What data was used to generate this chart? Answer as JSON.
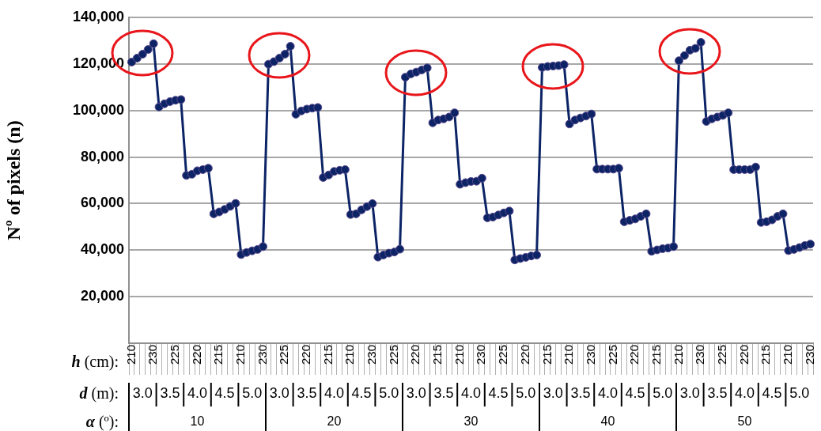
{
  "chart_data": {
    "type": "line",
    "ylabel": "Nº of pixels (n)",
    "categories": [
      "210",
      null,
      null,
      null,
      "230",
      null,
      null,
      null,
      "225",
      null,
      null,
      null,
      "220",
      null,
      null,
      null,
      "215",
      null,
      null,
      null,
      "210",
      null,
      null,
      null,
      "230",
      null,
      null,
      null,
      "225",
      null,
      null,
      null,
      "220",
      null,
      null,
      null,
      "215",
      null,
      null,
      null,
      "210",
      null,
      null,
      null,
      "230",
      null,
      null,
      null,
      "225",
      null,
      null,
      null,
      "220",
      null,
      null,
      null,
      "215",
      null,
      null,
      null,
      "210",
      null,
      null,
      null,
      "230",
      null,
      null,
      null,
      "225",
      null,
      null,
      null,
      "220",
      null,
      null,
      null,
      "215",
      null,
      null,
      null,
      "210",
      null,
      null,
      null,
      "230",
      null,
      null,
      null,
      "225",
      null,
      null,
      null,
      "220",
      null,
      null,
      null,
      "215",
      null,
      null,
      null,
      "210",
      null,
      null,
      null,
      "230",
      null,
      null,
      null,
      "225",
      null,
      null,
      null,
      "220",
      null,
      null,
      null,
      "215",
      null,
      null,
      null,
      "210",
      null,
      null,
      null,
      "230"
    ],
    "series": [
      {
        "color": "#0c2466",
        "values": [
          120800,
          122500,
          124200,
          126200,
          128700,
          101500,
          102900,
          103800,
          104400,
          104700,
          72100,
          72600,
          74100,
          74600,
          75200,
          55600,
          56400,
          57500,
          58800,
          60100,
          38100,
          39000,
          39700,
          40300,
          41500,
          119900,
          121000,
          122500,
          124200,
          127600,
          98400,
          99800,
          100600,
          101000,
          101300,
          71200,
          72300,
          73800,
          74300,
          74600,
          55300,
          55600,
          57300,
          58700,
          60000,
          37000,
          37900,
          38700,
          39200,
          40400,
          114300,
          115700,
          116500,
          117400,
          118300,
          94700,
          95900,
          96400,
          97200,
          99000,
          68300,
          69000,
          69500,
          69600,
          70900,
          53900,
          54200,
          55100,
          56000,
          56800,
          35800,
          36400,
          36900,
          37500,
          37900,
          118500,
          118900,
          119100,
          119300,
          119700,
          94200,
          95900,
          96800,
          97600,
          98500,
          74800,
          74800,
          74800,
          74800,
          75200,
          52200,
          52800,
          53400,
          54500,
          55600,
          39500,
          40100,
          40600,
          40900,
          41500,
          121400,
          123600,
          125900,
          126700,
          129300,
          95300,
          96400,
          97200,
          97900,
          99000,
          74600,
          74600,
          74600,
          74600,
          75700,
          51900,
          52200,
          53000,
          54500,
          55600,
          39800,
          40300,
          41100,
          42000,
          42600
        ]
      }
    ],
    "ylim": [
      0,
      140000
    ],
    "yticks": [
      {
        "value": 20000,
        "label": "20,000"
      },
      {
        "value": 40000,
        "label": "40,000"
      },
      {
        "value": 60000,
        "label": "60,000"
      },
      {
        "value": 80000,
        "label": "80,000"
      },
      {
        "value": 100000,
        "label": "100,000"
      },
      {
        "value": 120000,
        "label": "120,000"
      },
      {
        "value": 140000,
        "label": "140,000"
      }
    ],
    "grid": "y",
    "legend": false,
    "marker": "circle",
    "line_style": "solid",
    "annotations": [
      "h (cm):",
      "d (m):",
      "α (º):",
      "3.0",
      "3.5",
      "4.0",
      "4.5",
      "5.0",
      "3.0",
      "3.5",
      "4.0",
      "4.5",
      "5.0",
      "3.0",
      "3.5",
      "4.0",
      "4.5",
      "5.0",
      "3.0",
      "3.5",
      "4.0",
      "4.5",
      "5.0",
      "3.0",
      "3.5",
      "4.0",
      "4.5",
      "5.0",
      "10",
      "20",
      "30",
      "40",
      "50"
    ]
  }
}
